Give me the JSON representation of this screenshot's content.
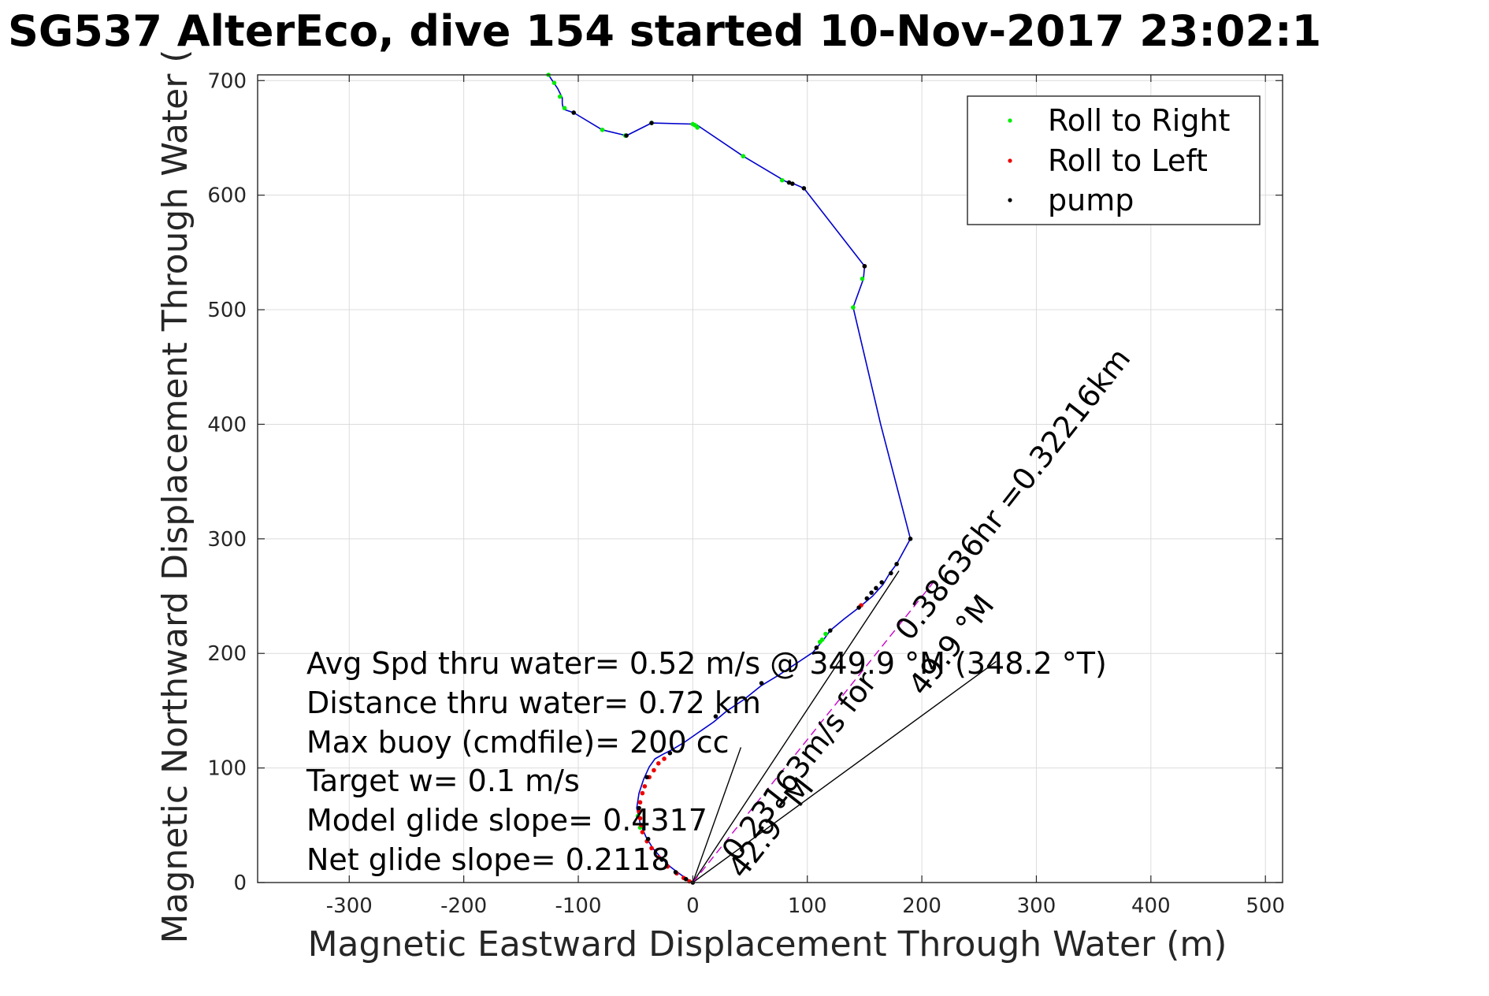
{
  "chart_data": {
    "type": "line",
    "title": "SG537 AlterEco, dive 154 started 10-Nov-2017 23:02:1",
    "xlabel": "Magnetic Eastward Displacement Through Water (m)",
    "ylabel": "Magnetic Northward Displacement Through Water (",
    "xlim": [
      -380,
      515
    ],
    "ylim": [
      0,
      705
    ],
    "xticks": [
      -300,
      -200,
      -100,
      0,
      100,
      200,
      300,
      400,
      500
    ],
    "yticks": [
      0,
      100,
      200,
      300,
      400,
      500,
      600,
      700
    ],
    "grid": true,
    "legend": {
      "placement": "top-right",
      "entries": [
        {
          "label": "Roll to Right",
          "color": "#00ee00"
        },
        {
          "label": "Roll to Left",
          "color": "#ee0000"
        },
        {
          "label": "pump",
          "color": "#000000"
        }
      ]
    },
    "track": {
      "color": "#0000cc",
      "points": [
        [
          0,
          0
        ],
        [
          -5,
          3
        ],
        [
          -12,
          8
        ],
        [
          -20,
          14
        ],
        [
          -28,
          22
        ],
        [
          -35,
          30
        ],
        [
          -41,
          40
        ],
        [
          -46,
          52
        ],
        [
          -49,
          65
        ],
        [
          -47,
          78
        ],
        [
          -43,
          90
        ],
        [
          -38,
          101
        ],
        [
          -33,
          108
        ],
        [
          -26,
          112
        ],
        [
          -18,
          116
        ],
        [
          -8,
          122
        ],
        [
          5,
          131
        ],
        [
          18,
          140
        ],
        [
          30,
          150
        ],
        [
          45,
          160
        ],
        [
          60,
          172
        ],
        [
          75,
          181
        ],
        [
          90,
          191
        ],
        [
          105,
          201
        ],
        [
          115,
          213
        ],
        [
          120,
          220
        ],
        [
          132,
          230
        ],
        [
          145,
          240
        ],
        [
          157,
          250
        ],
        [
          166,
          260
        ],
        [
          172,
          270
        ],
        [
          178,
          278
        ],
        [
          190,
          300
        ],
        [
          164,
          400
        ],
        [
          140,
          502
        ],
        [
          149,
          527
        ],
        [
          150,
          538
        ],
        [
          97,
          606
        ],
        [
          88,
          610
        ],
        [
          81,
          612
        ],
        [
          44,
          634
        ],
        [
          4,
          661
        ],
        [
          1,
          662
        ],
        [
          -36,
          663
        ],
        [
          -58,
          652
        ],
        [
          -79,
          657
        ],
        [
          -104,
          672
        ],
        [
          -113,
          675
        ],
        [
          -114,
          680
        ],
        [
          -114,
          685
        ],
        [
          -118,
          693
        ],
        [
          -122,
          699
        ],
        [
          -126,
          705
        ]
      ]
    },
    "roll_right_points": [
      [
        -126,
        705
      ],
      [
        -121,
        698
      ],
      [
        -116,
        686
      ],
      [
        -112,
        676
      ],
      [
        -79,
        657
      ],
      [
        -59,
        652
      ],
      [
        -36,
        663
      ],
      [
        0,
        662
      ],
      [
        2,
        661
      ],
      [
        4,
        659
      ],
      [
        44,
        634
      ],
      [
        78,
        613
      ],
      [
        148,
        527
      ],
      [
        140,
        502
      ],
      [
        111,
        210
      ],
      [
        113,
        212
      ],
      [
        116,
        217
      ],
      [
        -48,
        58
      ],
      [
        -46,
        48
      ]
    ],
    "roll_left_points": [
      [
        150,
        538
      ],
      [
        147,
        242
      ],
      [
        -25,
        108
      ],
      [
        -30,
        104
      ],
      [
        -34,
        98
      ],
      [
        -38,
        92
      ],
      [
        -42,
        84
      ],
      [
        -44,
        78
      ],
      [
        -46,
        70
      ],
      [
        -47,
        62
      ],
      [
        -46,
        56
      ],
      [
        -45,
        50
      ],
      [
        -44,
        44
      ],
      [
        -40,
        36
      ],
      [
        -36,
        30
      ],
      [
        -30,
        22
      ],
      [
        -22,
        14
      ],
      [
        -14,
        8
      ],
      [
        -8,
        4
      ],
      [
        -3,
        1
      ]
    ],
    "pump_points": [
      [
        -104,
        672
      ],
      [
        -58,
        652
      ],
      [
        -36,
        663
      ],
      [
        84,
        611
      ],
      [
        87,
        610
      ],
      [
        97,
        606
      ],
      [
        150,
        538
      ],
      [
        190,
        300
      ],
      [
        178,
        278
      ],
      [
        173,
        270
      ],
      [
        165,
        262
      ],
      [
        160,
        257
      ],
      [
        156,
        253
      ],
      [
        152,
        248
      ],
      [
        145,
        240
      ],
      [
        120,
        220
      ],
      [
        108,
        205
      ],
      [
        60,
        174
      ],
      [
        20,
        145
      ],
      [
        -20,
        113
      ],
      [
        -40,
        92
      ],
      [
        -47,
        65
      ],
      [
        -39,
        38
      ],
      [
        -27,
        20
      ],
      [
        -15,
        9
      ],
      [
        -6,
        3
      ],
      [
        0,
        0
      ]
    ],
    "vector_lines": [
      {
        "x": [
          0,
          180
        ],
        "y": [
          0,
          272
        ],
        "color": "#000000"
      },
      {
        "x": [
          0,
          265
        ],
        "y": [
          0,
          193
        ],
        "color": "#000000"
      },
      {
        "x": [
          0,
          42
        ],
        "y": [
          0,
          118
        ],
        "color": "#000000"
      },
      {
        "x": [
          0,
          210
        ],
        "y": [
          0,
          262
        ],
        "color": "#cc00cc",
        "dashed": true
      }
    ],
    "annotations": {
      "stats": [
        "Avg Spd thru water=  0.52 m/s @ 349.9 °M (348.2 °T)",
        "Distance thru water=  0.72 km",
        "Max buoy (cmdfile)= 200 cc",
        "Target w= 0.1 m/s",
        "Model glide slope= 0.4317",
        "Net glide slope= 0.2118"
      ],
      "diagonal_1": "0.38636hr =0.32216km",
      "diagonal_2": "0.23163m/s for",
      "diagonal_3": "49.9 °M",
      "diagonal_4": "42.9 °M"
    }
  }
}
